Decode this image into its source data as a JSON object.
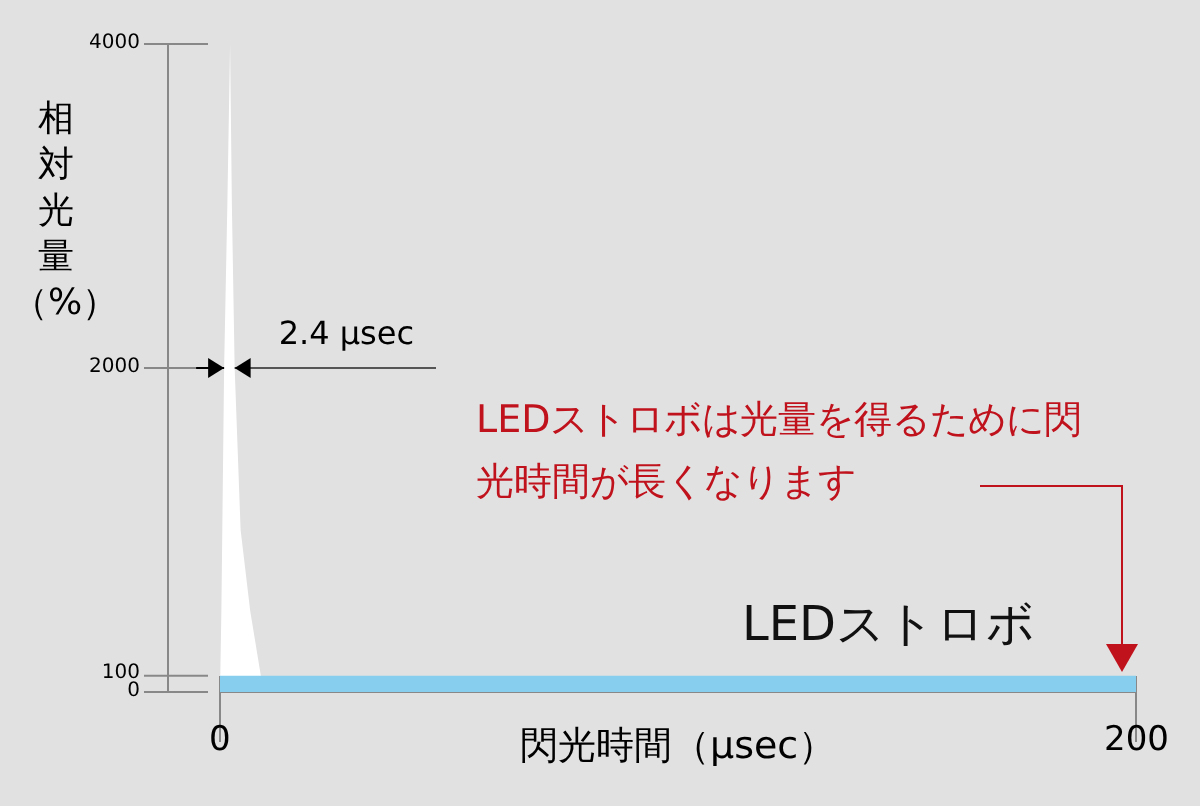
{
  "chart_data": {
    "type": "area",
    "xlabel": "閃光時間（μsec）",
    "ylabel": "相対光量（%）",
    "xlim": [
      0,
      200
    ],
    "xticks": [
      0,
      200
    ],
    "ylim": [
      0,
      4000
    ],
    "yticks": [
      0,
      100,
      2000,
      4000
    ],
    "grid": false,
    "legend": false,
    "series": [
      {
        "color": "#ffffff",
        "x": [
          0,
          0.3,
          0.9,
          1.6,
          2.2,
          2.6,
          3.2,
          4.5,
          6.6,
          9.5
        ],
        "values": [
          0,
          500,
          2000,
          3000,
          4000,
          3000,
          2000,
          1000,
          500,
          0
        ]
      },
      {
        "name": "LEDストロボ",
        "color": "#87cdee",
        "x": [
          0,
          0,
          200,
          200
        ],
        "values": [
          0,
          100,
          100,
          0
        ]
      }
    ],
    "annotations": [
      "2.4 μsec",
      "LEDストロボは光量を得るために閃光時間が長くなります"
    ]
  }
}
